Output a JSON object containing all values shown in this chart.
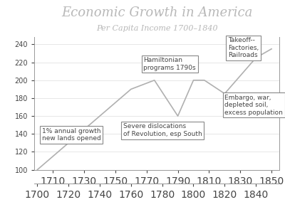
{
  "title": "Economic Growth in America",
  "subtitle": "Per Capita Income 1700–1840",
  "x": [
    1700,
    1760,
    1775,
    1790,
    1800,
    1807,
    1820,
    1840,
    1850
  ],
  "y": [
    100,
    190,
    200,
    160,
    200,
    200,
    185,
    225,
    235
  ],
  "xlim": [
    1698,
    1855
  ],
  "ylim": [
    100,
    248
  ],
  "yticks": [
    100,
    120,
    140,
    160,
    180,
    200,
    220,
    240
  ],
  "xticks_top": [
    1700,
    1720,
    1740,
    1760,
    1780,
    1800,
    1820,
    1840
  ],
  "xticks_bottom": [
    1710,
    1730,
    1750,
    1770,
    1790,
    1810,
    1830,
    1850
  ],
  "line_color": "#b0b0b0",
  "title_color": "#b8b8b8",
  "text_color": "#444444",
  "background_color": "#ffffff",
  "grid_color": "#dddddd",
  "spine_color": "#999999",
  "ann1_text": "1% annual growth\nnew lands opened",
  "ann1_x": 1703,
  "ann1_y": 133,
  "ann2_text": "Hamiltonian\nprograms 1790s",
  "ann2_x": 1768,
  "ann2_y": 212,
  "ann3_text": "Severe dislocations\nof Revolution, esp South",
  "ann3_x": 1755,
  "ann3_y": 138,
  "ann4_text": "Takeoff--\nFactories,\nRailroads",
  "ann4_x": 1822,
  "ann4_y": 226,
  "ann5_text": "Embargo, war,\ndepleted soil,\nexcess population",
  "ann5_x": 1820,
  "ann5_y": 162
}
